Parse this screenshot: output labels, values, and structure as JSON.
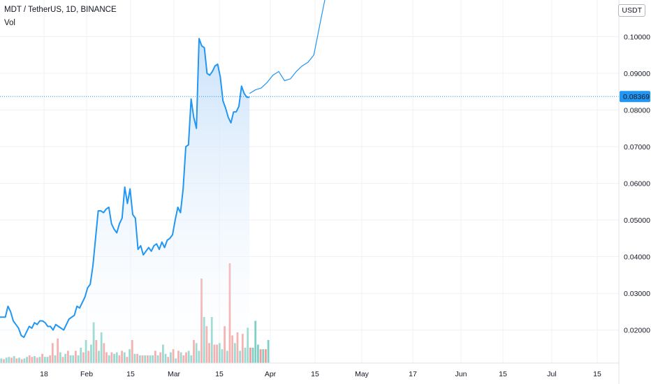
{
  "header": {
    "symbol": "MDT / TetherUS, 1D, BINANCE",
    "indicator": "Vol",
    "unit": "USDT"
  },
  "colors": {
    "line": "#2196f3",
    "area_top": "#cfe5fb",
    "vol_up": "#7fcfc5",
    "vol_down": "#f29a9a",
    "price_tag": "#2196f3",
    "grid": "#eef0f3"
  },
  "chart_data": {
    "type": "line",
    "title": "MDT / TetherUS, 1D, BINANCE",
    "ylim": [
      0.011,
      0.11
    ],
    "y_ticks": [
      0.02,
      0.03,
      0.04,
      0.05,
      0.06,
      0.07,
      0.08,
      0.09,
      0.1
    ],
    "y_tick_labels": [
      "0.02000",
      "0.03000",
      "0.04000",
      "0.05000",
      "0.06000",
      "0.07000",
      "0.08000",
      "0.09000",
      "0.10000"
    ],
    "x_tick_labels": [
      "18",
      "Feb",
      "15",
      "Mar",
      "15",
      "Apr",
      "15",
      "May",
      "17",
      "Jun",
      "15",
      "Jul",
      "15"
    ],
    "last_price": 0.08369,
    "last_price_label": "0.08369",
    "series": [
      {
        "values": [
          0.0235,
          0.0235,
          0.0235,
          0.0265,
          0.025,
          0.0225,
          0.0215,
          0.0205,
          0.0185,
          0.018,
          0.0195,
          0.021,
          0.0205,
          0.022,
          0.0215,
          0.0225,
          0.0225,
          0.022,
          0.021,
          0.021,
          0.02,
          0.0215,
          0.021,
          0.0205,
          0.02,
          0.0215,
          0.023,
          0.0235,
          0.024,
          0.0265,
          0.026,
          0.0275,
          0.029,
          0.0315,
          0.0325,
          0.0375,
          0.045,
          0.0525,
          0.0525,
          0.052,
          0.053,
          0.0535,
          0.049,
          0.0475,
          0.0465,
          0.049,
          0.0505,
          0.059,
          0.0545,
          0.0585,
          0.0515,
          0.0505,
          0.042,
          0.043,
          0.0405,
          0.0415,
          0.0425,
          0.0415,
          0.043,
          0.0435,
          0.042,
          0.044,
          0.0425,
          0.0445,
          0.045,
          0.046,
          0.05,
          0.0535,
          0.052,
          0.0585,
          0.07,
          0.0705,
          0.083,
          0.078,
          0.075,
          0.0995,
          0.0975,
          0.097,
          0.09,
          0.0895,
          0.0905,
          0.092,
          0.0925,
          0.089,
          0.0825,
          0.0805,
          0.078,
          0.0765,
          0.0795,
          0.0795,
          0.081,
          0.0865,
          0.0845,
          0.0835,
          0.0835
        ]
      }
    ],
    "volume": {
      "values": [
        0.6,
        0.5,
        0.7,
        0.8,
        0.7,
        0.9,
        0.6,
        0.7,
        0.5,
        0.6,
        0.8,
        1.0,
        0.8,
        0.9,
        0.7,
        0.8,
        1.2,
        0.8,
        0.8,
        1.0,
        2.6,
        1.0,
        3.2,
        1.4,
        0.8,
        1.2,
        1.6,
        1.0,
        1.0,
        1.6,
        1.0,
        2.0,
        1.4,
        3.0,
        1.6,
        2.4,
        5.3,
        3.0,
        1.6,
        4.0,
        2.6,
        1.4,
        1.0,
        1.4,
        1.2,
        1.4,
        1.0,
        1.6,
        1.4,
        0.8,
        1.8,
        3.0,
        1.2,
        1.2,
        1.0,
        1.0,
        1.0,
        1.0,
        1.0,
        1.0,
        1.6,
        1.0,
        1.4,
        2.4,
        1.2,
        0.8,
        1.4,
        1.8,
        0.6,
        1.6,
        1.4,
        1.0,
        1.4,
        1.6,
        1.0,
        3.0,
        2.6,
        1.6,
        11.0,
        6.0,
        4.8,
        2.6,
        6.0,
        2.4,
        2.4,
        2.6,
        1.8,
        4.8,
        1.6,
        13.0,
        3.6,
        2.6,
        4.0,
        1.6,
        3.8,
        2.0,
        4.6,
        2.0,
        2.0,
        5.5,
        2.4,
        1.8,
        1.8,
        1.8,
        3.0
      ],
      "up": [
        true,
        false,
        true,
        true,
        false,
        true,
        false,
        true,
        false,
        true,
        true,
        false,
        false,
        true,
        false,
        true,
        false,
        true,
        true,
        false,
        false,
        true,
        false,
        true,
        false,
        true,
        false,
        true,
        true,
        false,
        true,
        true,
        false,
        true,
        false,
        true,
        true,
        false,
        true,
        true,
        false,
        false,
        true,
        false,
        true,
        true,
        false,
        false,
        true,
        false,
        true,
        false,
        true,
        false,
        true,
        false,
        true,
        false,
        true,
        true,
        false,
        true,
        false,
        true,
        true,
        false,
        true,
        false,
        true,
        false,
        true,
        false,
        false,
        true,
        true,
        false,
        true,
        true,
        false,
        true,
        false,
        false,
        true,
        false,
        false,
        true,
        true,
        false,
        true,
        false,
        false,
        true,
        false,
        true,
        false,
        true,
        true,
        false,
        true,
        true,
        true,
        false,
        true,
        false,
        true
      ]
    },
    "projection": {
      "values": [
        0.0845,
        0.0855,
        0.086,
        0.0875,
        0.0895,
        0.0905,
        0.088,
        0.0885,
        0.0905,
        0.092,
        0.093,
        0.095,
        0.103,
        0.111
      ]
    }
  }
}
